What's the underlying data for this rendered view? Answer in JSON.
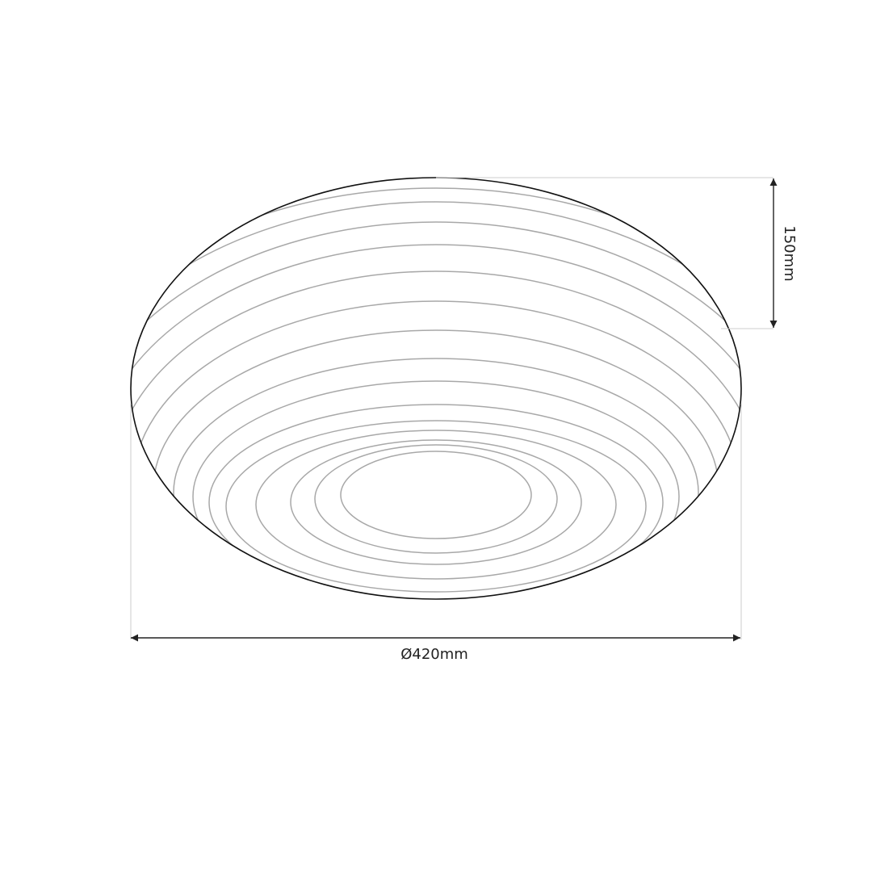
{
  "diagram": {
    "width_label": "Ø420mm",
    "height_label": "150mm",
    "colors": {
      "outline": "#111111",
      "rings": "#a8a8a8",
      "extension_lines": "#cccccc",
      "dimension_lines": "#222222"
    }
  }
}
